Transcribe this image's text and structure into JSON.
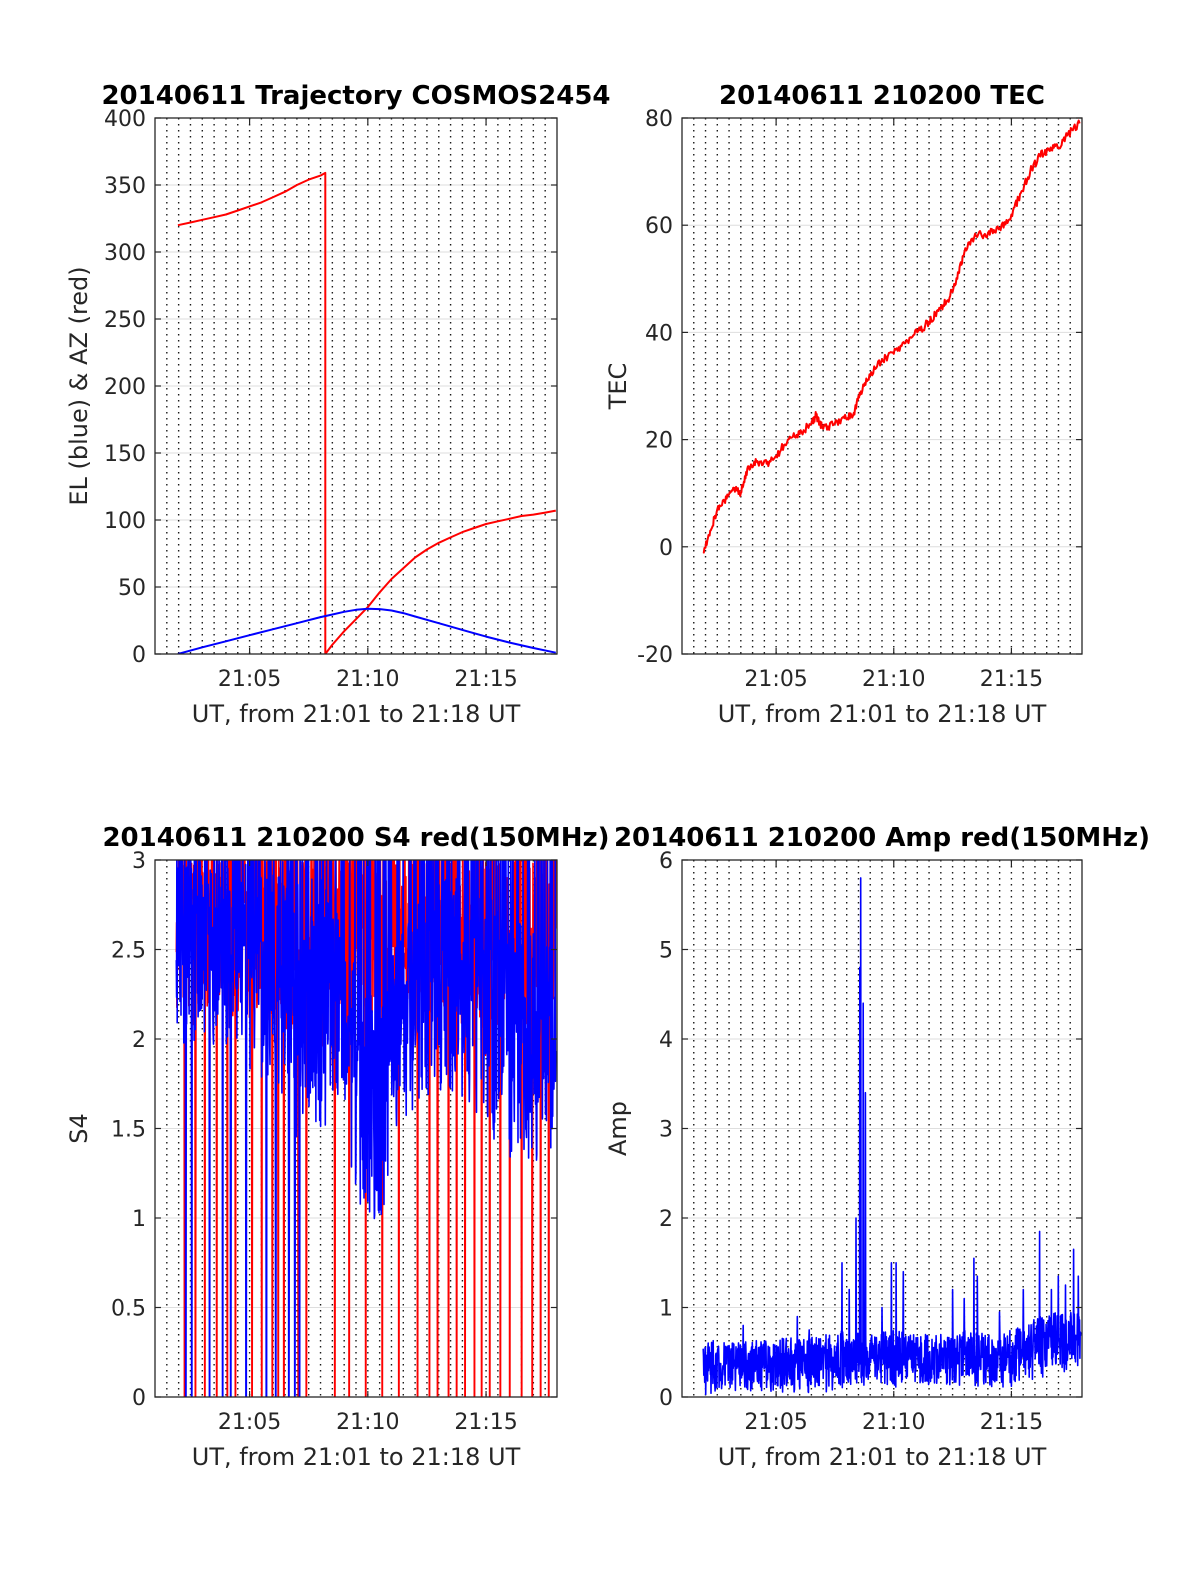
{
  "chart_data": [
    {
      "type": "line",
      "title": "20140611 Trajectory COSMOS2454",
      "xlabel": "UT, from 21:01 to 21:18 UT",
      "ylabel": "EL (blue) & AZ (red)",
      "x_unit": "minutes after 21:00 UT",
      "xlim": [
        1,
        18
      ],
      "ylim": [
        0,
        400
      ],
      "xticks": [
        5,
        10,
        15
      ],
      "xtick_labels": [
        "21:05",
        "21:10",
        "21:15"
      ],
      "yticks": [
        0,
        50,
        100,
        150,
        200,
        250,
        300,
        350,
        400
      ],
      "ytick_labels": [
        "0",
        "50",
        "100",
        "150",
        "200",
        "250",
        "300",
        "350",
        "400"
      ],
      "minor_x_grid_step": 0.5,
      "grid": true,
      "series": [
        {
          "color": "#ff0000",
          "x": [
            1.97,
            2.5,
            3.0,
            3.5,
            4.0,
            4.5,
            5.0,
            5.5,
            6.0,
            6.5,
            7.0,
            7.5,
            8.0,
            8.2,
            8.2,
            8.5,
            9.0,
            9.5,
            10.0,
            10.5,
            11.0,
            11.5,
            12.0,
            12.5,
            13.0,
            13.5,
            14.0,
            14.5,
            15.0,
            15.5,
            16.0,
            16.5,
            17.0,
            17.5,
            17.95
          ],
          "y": [
            320,
            322,
            324,
            326,
            328,
            331,
            334,
            337,
            341,
            345,
            350,
            354,
            357,
            359,
            0,
            7,
            17,
            26,
            35,
            46,
            56,
            64,
            72,
            78,
            83,
            87,
            91,
            94,
            97,
            99,
            101,
            103,
            104,
            105.5,
            107
          ]
        },
        {
          "color": "#0000ff",
          "x": [
            1.97,
            3.0,
            4.0,
            5.0,
            6.0,
            7.0,
            8.0,
            8.5,
            9.0,
            9.5,
            10.0,
            10.5,
            11.0,
            11.5,
            12.0,
            13.0,
            14.0,
            15.0,
            16.0,
            17.0,
            17.95
          ],
          "y": [
            0,
            5,
            9.5,
            14,
            18.5,
            23,
            27.5,
            29.5,
            31.5,
            33,
            33.8,
            33.5,
            32.5,
            30.5,
            28,
            23,
            18,
            13,
            8.5,
            4.5,
            1
          ]
        }
      ]
    },
    {
      "type": "line",
      "title": "20140611 210200 TEC",
      "xlabel": "UT, from 21:01 to 21:18 UT",
      "ylabel": "TEC",
      "x_unit": "minutes after 21:00 UT",
      "xlim": [
        1,
        18
      ],
      "ylim": [
        -20,
        80
      ],
      "xticks": [
        5,
        10,
        15
      ],
      "xtick_labels": [
        "21:05",
        "21:10",
        "21:15"
      ],
      "yticks": [
        -20,
        0,
        20,
        40,
        60,
        80
      ],
      "ytick_labels": [
        "-20",
        "0",
        "20",
        "40",
        "60",
        "80"
      ],
      "minor_x_grid_step": 0.5,
      "grid": true,
      "noise_amplitude": 0.8,
      "series": [
        {
          "color": "#ff0000",
          "x": [
            1.9,
            2.2,
            2.5,
            2.9,
            3.2,
            3.5,
            3.8,
            4.2,
            4.6,
            5.0,
            5.5,
            6.0,
            6.5,
            6.7,
            7.0,
            7.5,
            7.9,
            8.3,
            8.6,
            9.0,
            9.5,
            10.0,
            10.5,
            11.0,
            11.5,
            11.9,
            12.3,
            12.7,
            13.0,
            13.5,
            14.0,
            14.5,
            15.0,
            15.4,
            15.8,
            16.2,
            16.6,
            17.0,
            17.4,
            17.9
          ],
          "y": [
            -1,
            3,
            7,
            9,
            11,
            10,
            15,
            16,
            15.5,
            17,
            20,
            21,
            23,
            24.5,
            22,
            23,
            24,
            25,
            29,
            32,
            35,
            36,
            38,
            40,
            42,
            44,
            46,
            50,
            55,
            58,
            58.5,
            59.5,
            62,
            66,
            70,
            73,
            74,
            74.5,
            77,
            79
          ]
        }
      ]
    },
    {
      "type": "line",
      "title": "20140611 210200 S4 red(150MHz)",
      "xlabel": "UT, from 21:01 to 21:18 UT",
      "ylabel": "S4",
      "x_unit": "minutes after 21:00 UT",
      "xlim": [
        1,
        18
      ],
      "ylim": [
        0,
        3
      ],
      "xticks": [
        5,
        10,
        15
      ],
      "xtick_labels": [
        "21:05",
        "21:10",
        "21:15"
      ],
      "yticks": [
        0,
        0.5,
        1,
        1.5,
        2,
        2.5,
        3
      ],
      "ytick_labels": [
        "0",
        "0.5",
        "1",
        "1.5",
        "2",
        "2.5",
        "3"
      ],
      "minor_x_grid_step": 0.5,
      "grid": true,
      "render": "dense_noise",
      "series": [
        {
          "color": "#ff0000",
          "x_range": [
            1.9,
            17.95
          ],
          "envelope": {
            "x": [
              1.9,
              3.0,
              5.0,
              7.0,
              8.5,
              9.0,
              10.0,
              11.0,
              12.0,
              13.0,
              14.0,
              15.0,
              16.0,
              17.0,
              17.95
            ],
            "low": [
              2.0,
              2.1,
              2.1,
              2.0,
              1.8,
              1.9,
              2.0,
              1.9,
              2.0,
              2.0,
              2.0,
              1.9,
              1.9,
              1.9,
              1.8
            ],
            "high": [
              3.0,
              3.0,
              3.0,
              3.0,
              3.0,
              3.0,
              3.0,
              3.0,
              3.0,
              3.0,
              3.0,
              3.0,
              3.0,
              3.0,
              3.0
            ]
          },
          "dropouts_to_zero": [
            2.25,
            2.7,
            3.1,
            3.6,
            4.05,
            4.4,
            5.1,
            5.5,
            5.95,
            6.2,
            6.45,
            7.05,
            7.4,
            8.6,
            9.2,
            9.9,
            10.6,
            11.3,
            12.1,
            12.6,
            12.95,
            13.4,
            13.75,
            14.1,
            14.5,
            14.8,
            15.15,
            15.6,
            16.0,
            16.5,
            16.95,
            17.3,
            17.65
          ]
        },
        {
          "color": "#0000ff",
          "x_range": [
            1.9,
            17.95
          ],
          "envelope": {
            "x": [
              1.9,
              3.0,
              4.0,
              5.0,
              6.0,
              7.0,
              7.5,
              8.0,
              8.5,
              9.0,
              9.5,
              10.0,
              10.5,
              11.0,
              11.5,
              12.0,
              13.0,
              14.0,
              15.0,
              16.0,
              17.0,
              17.95
            ],
            "low": [
              1.9,
              2.0,
              1.9,
              1.8,
              1.7,
              1.3,
              1.5,
              1.4,
              1.6,
              1.5,
              1.1,
              1.0,
              0.8,
              1.4,
              1.5,
              1.6,
              1.7,
              1.6,
              1.5,
              1.3,
              1.3,
              1.2
            ],
            "high": [
              3.0,
              3.0,
              3.0,
              3.0,
              3.0,
              3.0,
              3.0,
              2.9,
              2.8,
              2.6,
              2.4,
              2.3,
              2.1,
              2.5,
              2.6,
              2.8,
              2.9,
              2.9,
              2.8,
              2.7,
              2.6,
              2.5
            ]
          },
          "dropouts_to_zero": [
            2.3,
            2.55,
            3.3,
            3.85,
            4.2,
            4.85,
            5.7,
            6.1,
            6.65,
            6.9,
            7.1
          ]
        }
      ]
    },
    {
      "type": "line",
      "title": "20140611 210200 Amp red(150MHz)",
      "xlabel": "UT, from 21:01 to 21:18 UT",
      "ylabel": "Amp",
      "x_unit": "minutes after 21:00 UT",
      "xlim": [
        1,
        18
      ],
      "ylim": [
        0,
        6
      ],
      "xticks": [
        5,
        10,
        15
      ],
      "xtick_labels": [
        "21:05",
        "21:10",
        "21:15"
      ],
      "yticks": [
        0,
        1,
        2,
        3,
        4,
        5,
        6
      ],
      "ytick_labels": [
        "0",
        "1",
        "2",
        "3",
        "4",
        "5",
        "6"
      ],
      "minor_x_grid_step": 0.5,
      "grid": true,
      "render": "dense_noise",
      "series": [
        {
          "color": "#0000ff",
          "x_range": [
            1.9,
            17.95
          ],
          "envelope": {
            "x": [
              1.9,
              3.0,
              5.0,
              7.0,
              8.0,
              9.0,
              10.0,
              11.0,
              12.0,
              13.0,
              14.0,
              15.0,
              15.5,
              16.0,
              17.0,
              17.95
            ],
            "low": [
              0.0,
              0.05,
              0.05,
              0.05,
              0.1,
              0.1,
              0.1,
              0.1,
              0.1,
              0.1,
              0.1,
              0.1,
              0.15,
              0.2,
              0.25,
              0.3
            ],
            "high": [
              0.65,
              0.6,
              0.65,
              0.7,
              0.75,
              0.7,
              0.75,
              0.7,
              0.7,
              0.75,
              0.7,
              0.75,
              0.8,
              0.9,
              0.95,
              0.95
            ]
          },
          "spikes": [
            {
              "x": 8.6,
              "y": 5.8
            },
            {
              "x": 8.55,
              "y": 4.8
            },
            {
              "x": 8.7,
              "y": 4.4
            },
            {
              "x": 8.8,
              "y": 3.4
            },
            {
              "x": 8.4,
              "y": 2.0
            },
            {
              "x": 7.8,
              "y": 1.5
            },
            {
              "x": 8.1,
              "y": 1.2
            },
            {
              "x": 9.9,
              "y": 1.5
            },
            {
              "x": 10.1,
              "y": 1.5
            },
            {
              "x": 10.4,
              "y": 1.4
            },
            {
              "x": 9.5,
              "y": 1.0
            },
            {
              "x": 12.5,
              "y": 1.2
            },
            {
              "x": 13.0,
              "y": 1.1
            },
            {
              "x": 13.4,
              "y": 1.55
            },
            {
              "x": 13.55,
              "y": 1.35
            },
            {
              "x": 14.5,
              "y": 0.95
            },
            {
              "x": 15.5,
              "y": 1.2
            },
            {
              "x": 16.2,
              "y": 1.85
            },
            {
              "x": 16.7,
              "y": 1.2
            },
            {
              "x": 17.0,
              "y": 1.35
            },
            {
              "x": 17.3,
              "y": 1.25
            },
            {
              "x": 17.65,
              "y": 1.65
            },
            {
              "x": 17.85,
              "y": 1.35
            },
            {
              "x": 5.9,
              "y": 0.9
            },
            {
              "x": 3.6,
              "y": 0.8
            },
            {
              "x": 6.4,
              "y": 0.75
            }
          ]
        }
      ]
    }
  ]
}
